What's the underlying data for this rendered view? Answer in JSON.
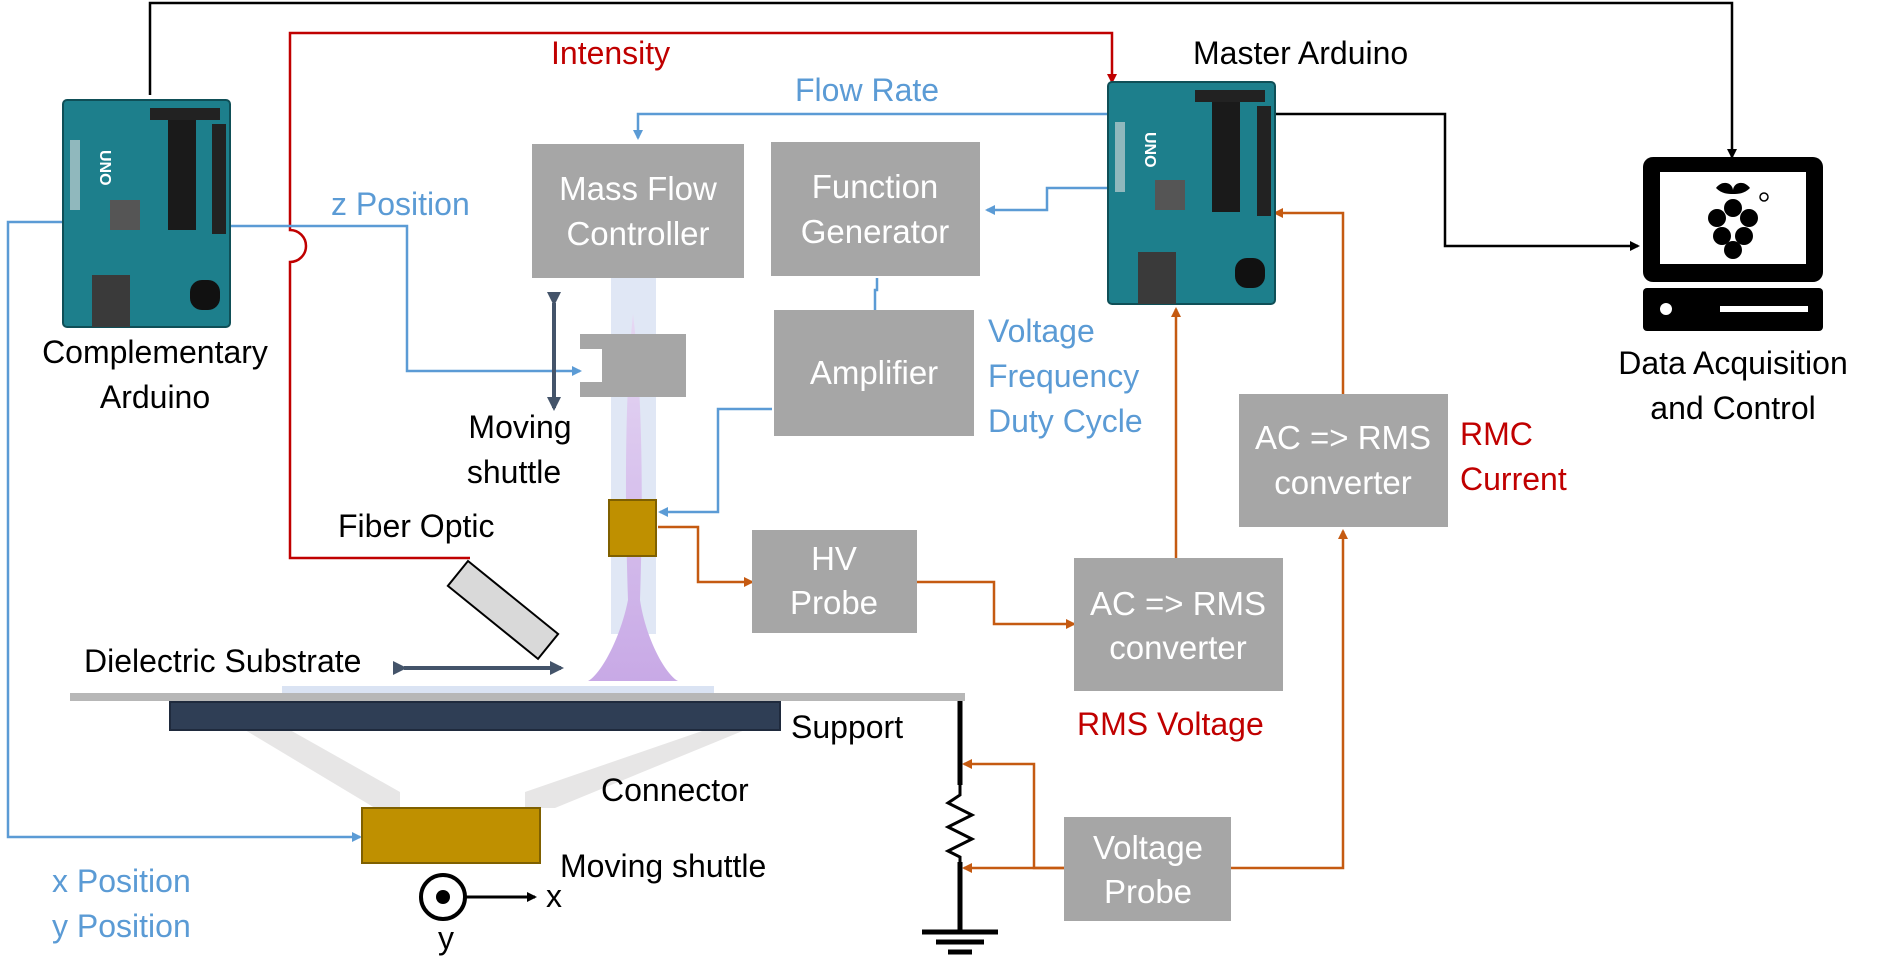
{
  "labels": {
    "master_arduino": "Master Arduino",
    "complementary_arduino_1": "Complementary",
    "complementary_arduino_2": "Arduino",
    "data_acq_1": "Data Acquisition",
    "data_acq_2": "and Control",
    "intensity": "Intensity",
    "flow_rate": "Flow Rate",
    "z_position": "z Position",
    "voltage": "Voltage",
    "frequency": "Frequency",
    "duty_cycle": "Duty Cycle",
    "moving_shuttle_top_1": "Moving",
    "moving_shuttle_top_2": "shuttle",
    "fiber_optic": "Fiber Optic",
    "dielectric_substrate": "Dielectric Substrate",
    "support": "Support",
    "connector": "Connector",
    "moving_shuttle_bottom": "Moving shuttle",
    "x_position": "x Position",
    "y_position": "y Position",
    "axis_x": "x",
    "axis_y": "y",
    "rms_voltage": "RMS Voltage",
    "rmc_current_1": "RMC",
    "rmc_current_2": "Current",
    "uno_logo": "UNO"
  },
  "boxes": {
    "mass_flow": [
      "Mass Flow",
      "Controller"
    ],
    "function_gen": [
      "Function",
      "Generator"
    ],
    "amplifier": [
      "Amplifier"
    ],
    "hv_probe": [
      "HV",
      "Probe"
    ],
    "ac_rms_voltage": [
      "AC => RMS",
      "converter"
    ],
    "ac_rms_current": [
      "AC => RMS",
      "converter"
    ],
    "voltage_probe": [
      "Voltage",
      "Probe"
    ]
  },
  "colors": {
    "signal_red": "#c00000",
    "signal_blue": "#5b9bd5",
    "signal_orange": "#c55a11",
    "box_gray": "#a6a6a6",
    "arduino_teal": "#1d7f8c",
    "shuttle_gold": "#bf9000",
    "support_navy": "#2f3e55"
  }
}
